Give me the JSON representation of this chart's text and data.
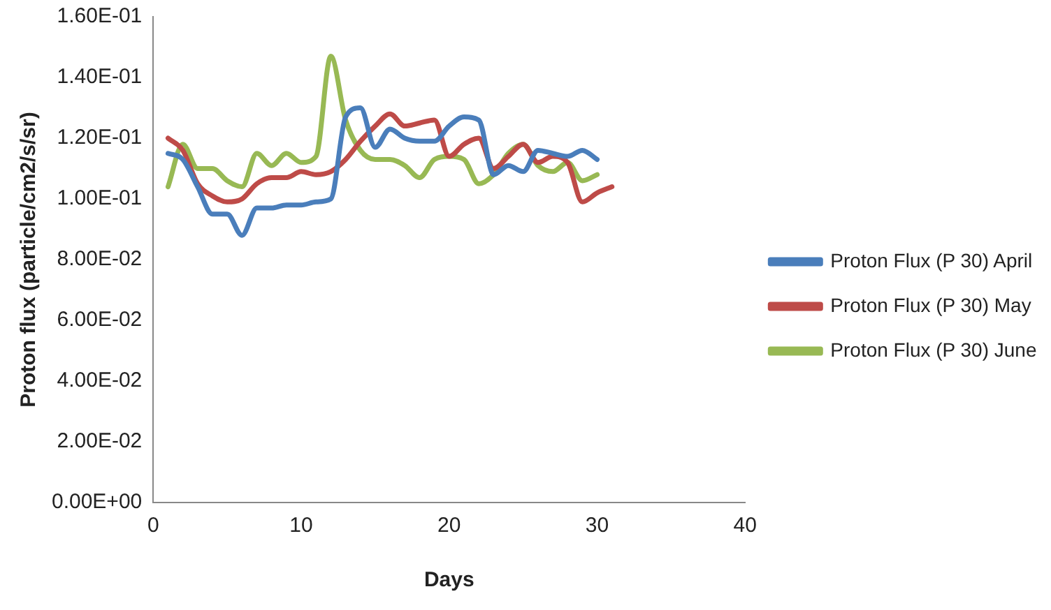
{
  "chart_data": {
    "type": "line",
    "xlabel": "Days",
    "ylabel": "Proton flux (particle/cm2/s/sr)",
    "xlim": [
      0,
      40
    ],
    "xticks": [
      0,
      10,
      20,
      30,
      40
    ],
    "ylim": [
      0,
      0.16
    ],
    "yticks": [
      {
        "value": 0,
        "label": "0.00E+00"
      },
      {
        "value": 0.02,
        "label": "2.00E-02"
      },
      {
        "value": 0.04,
        "label": "4.00E-02"
      },
      {
        "value": 0.06,
        "label": "6.00E-02"
      },
      {
        "value": 0.08,
        "label": "8.00E-02"
      },
      {
        "value": 0.1,
        "label": "1.00E-01"
      },
      {
        "value": 0.12,
        "label": "1.20E-01"
      },
      {
        "value": 0.14,
        "label": "1.40E-01"
      },
      {
        "value": 0.16,
        "label": "1.60E-01"
      }
    ],
    "grid": false,
    "legend": "right",
    "marker": "none",
    "series": [
      {
        "name": "Proton Flux (P 30) April",
        "color": "#4a7ebb",
        "x": [
          1,
          2,
          3,
          4,
          5,
          6,
          7,
          8,
          9,
          10,
          11,
          12,
          13,
          14,
          15,
          16,
          17,
          18,
          19,
          20,
          21,
          22,
          23,
          24,
          25,
          26,
          27,
          28,
          29,
          30
        ],
        "values": [
          0.115,
          0.113,
          0.104,
          0.095,
          0.095,
          0.088,
          0.097,
          0.097,
          0.098,
          0.098,
          0.099,
          0.1,
          0.127,
          0.13,
          0.117,
          0.123,
          0.12,
          0.119,
          0.119,
          0.124,
          0.127,
          0.126,
          0.108,
          0.111,
          0.109,
          0.116,
          0.115,
          0.114,
          0.116,
          0.113
        ]
      },
      {
        "name": "Proton Flux (P 30) May",
        "color": "#be4b48",
        "x": [
          1,
          2,
          3,
          4,
          5,
          6,
          7,
          8,
          9,
          10,
          11,
          12,
          13,
          14,
          15,
          16,
          17,
          18,
          19,
          20,
          21,
          22,
          23,
          24,
          25,
          26,
          27,
          28,
          29,
          30,
          31
        ],
        "values": [
          0.12,
          0.116,
          0.105,
          0.101,
          0.099,
          0.1,
          0.105,
          0.107,
          0.107,
          0.109,
          0.108,
          0.109,
          0.113,
          0.119,
          0.124,
          0.128,
          0.124,
          0.125,
          0.126,
          0.114,
          0.118,
          0.12,
          0.11,
          0.114,
          0.118,
          0.112,
          0.114,
          0.112,
          0.099,
          0.102,
          0.104
        ]
      },
      {
        "name": "Proton Flux (P 30) June",
        "color": "#98b954",
        "x": [
          1,
          2,
          3,
          4,
          5,
          6,
          7,
          8,
          9,
          10,
          11,
          12,
          13,
          14,
          15,
          16,
          17,
          18,
          19,
          20,
          21,
          22,
          23,
          24,
          25,
          26,
          27,
          28,
          29,
          30
        ],
        "values": [
          0.104,
          0.118,
          0.11,
          0.11,
          0.106,
          0.104,
          0.115,
          0.111,
          0.115,
          0.112,
          0.114,
          0.147,
          0.126,
          0.116,
          0.113,
          0.113,
          0.111,
          0.107,
          0.113,
          0.114,
          0.113,
          0.105,
          0.108,
          0.115,
          0.118,
          0.111,
          0.109,
          0.112,
          0.106,
          0.108
        ]
      }
    ]
  }
}
